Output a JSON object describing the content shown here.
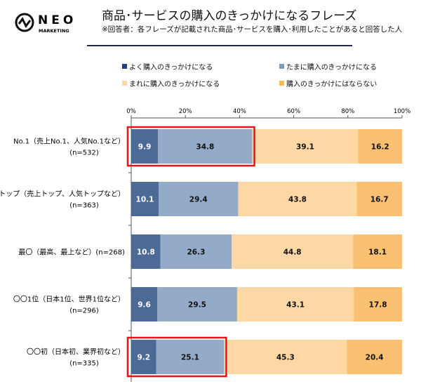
{
  "logo": {
    "text": "NEO",
    "subtext": "MARKETING"
  },
  "header": {
    "title": "商品･サービスの購入のきっかけになるフレーズ",
    "subtitle": "※回答者：各フレーズが記載された商品･サービスを購入･利用したことがあると回答した人"
  },
  "chart_data": {
    "type": "bar",
    "orientation": "horizontal",
    "stacked": true,
    "xlim": [
      0,
      100
    ],
    "ticks": [
      "0%",
      "20%",
      "40%",
      "60%",
      "80%",
      "100%"
    ],
    "legend_placement": "top",
    "categories": [
      [
        "No.1（売上No.1、人気No.1など）",
        "(n=532)"
      ],
      [
        "トップ（売上トップ、人気トップなど）",
        "(n=363)"
      ],
      [
        "最〇（最高、最上など）(n=268)"
      ],
      [
        "〇〇1位（日本1位、世界1位など）",
        "(n=296)"
      ],
      [
        "〇〇初（日本初、業界初など）",
        "(n=335)"
      ]
    ],
    "series": [
      {
        "name": "よく購入のきっかけになる",
        "color": "#4b6a96",
        "values": [
          9.9,
          10.1,
          10.8,
          9.6,
          9.2
        ]
      },
      {
        "name": "たまに購入のきっかけになる",
        "color": "#93aac8",
        "values": [
          34.8,
          29.4,
          26.3,
          29.5,
          25.1
        ]
      },
      {
        "name": "まれに購入のきっかけになる",
        "color": "#fdd8a4",
        "values": [
          39.1,
          43.8,
          44.8,
          43.1,
          45.3
        ]
      },
      {
        "name": "購入のきっかけにはならない",
        "color": "#f9c072",
        "values": [
          16.2,
          16.7,
          18.1,
          17.8,
          20.4
        ]
      }
    ],
    "highlighted_rows": [
      0,
      4
    ],
    "highlight_color": "#e8141a"
  }
}
